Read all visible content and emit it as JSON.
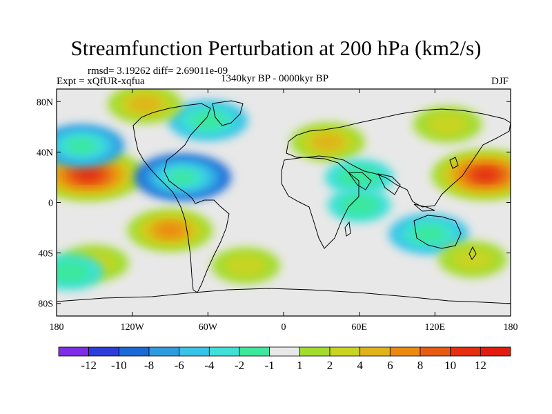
{
  "chart_data": {
    "type": "heatmap",
    "title": "Streamfunction Perturbation at 200 hPa (km2/s)",
    "stats": "rmsd= 3.19262 diff= 2.69011e-09",
    "experiment": "Expt = xQfUR-xqfua",
    "period": "1340kyr BP - 0000kyr BP",
    "season": "DJF",
    "projection": "cylindrical equidistant",
    "xlim": [
      -180,
      180
    ],
    "ylim": [
      -90,
      90
    ],
    "x_ticks": [
      {
        "value": -180,
        "label": "180"
      },
      {
        "value": -120,
        "label": "120W"
      },
      {
        "value": -60,
        "label": "60W"
      },
      {
        "value": 0,
        "label": "0"
      },
      {
        "value": 60,
        "label": "60E"
      },
      {
        "value": 120,
        "label": "120E"
      },
      {
        "value": 180,
        "label": "180"
      }
    ],
    "y_ticks": [
      {
        "value": 80,
        "label": "80N"
      },
      {
        "value": 40,
        "label": "40N"
      },
      {
        "value": 0,
        "label": "0"
      },
      {
        "value": -40,
        "label": "40S"
      },
      {
        "value": -80,
        "label": "80S"
      }
    ],
    "colorbar": {
      "colors": [
        "#7d2ee6",
        "#2d3ddc",
        "#1a6ad6",
        "#2e9be0",
        "#38c3e8",
        "#3ee0d8",
        "#3be89c",
        "#e8e8e8",
        "#a2dc2e",
        "#c9d420",
        "#e0b418",
        "#ec8a10",
        "#e65c12",
        "#e52f10",
        "#e31c10"
      ],
      "tick_labels": [
        "-12",
        "-10",
        "-8",
        "-6",
        "-4",
        "-2",
        "-1",
        "1",
        "2",
        "4",
        "6",
        "8",
        "10",
        "12"
      ]
    },
    "anomaly_centers": [
      {
        "lon": -155,
        "lat": 22,
        "value": 11
      },
      {
        "lon": 160,
        "lat": 22,
        "value": 10
      },
      {
        "lon": -80,
        "lat": 20,
        "value": -8
      },
      {
        "lon": -160,
        "lat": 45,
        "value": -6
      },
      {
        "lon": -60,
        "lat": 65,
        "value": -5
      },
      {
        "lon": -90,
        "lat": -22,
        "value": 6
      },
      {
        "lon": 115,
        "lat": -25,
        "value": -5
      },
      {
        "lon": 35,
        "lat": 48,
        "value": 4
      },
      {
        "lon": 60,
        "lat": 20,
        "value": -3
      },
      {
        "lon": 60,
        "lat": -2,
        "value": -2
      },
      {
        "lon": -110,
        "lat": 78,
        "value": 4
      },
      {
        "lon": 130,
        "lat": 62,
        "value": 3
      },
      {
        "lon": -30,
        "lat": -50,
        "value": 3
      },
      {
        "lon": 150,
        "lat": -45,
        "value": 3
      },
      {
        "lon": -150,
        "lat": -48,
        "value": 3
      },
      {
        "lon": -170,
        "lat": -55,
        "value": -3
      }
    ]
  }
}
